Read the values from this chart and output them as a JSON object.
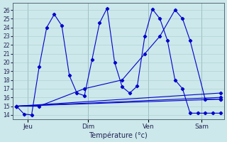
{
  "xlabel": "Température (°c)",
  "background_color": "#cce8ea",
  "grid_color": "#aacccc",
  "line_color": "#0000cc",
  "ylim": [
    13.5,
    26.8
  ],
  "yticks": [
    14,
    15,
    16,
    17,
    18,
    19,
    20,
    21,
    22,
    23,
    24,
    25,
    26
  ],
  "xtick_labels": [
    "Jeu",
    "Dim",
    "Ven",
    "Sam"
  ],
  "series": [
    {
      "x": [
        0,
        1,
        2,
        3,
        4,
        5,
        6,
        7,
        8,
        9,
        10,
        11,
        12,
        13,
        14,
        15,
        16,
        17,
        18,
        19,
        20,
        21,
        22,
        23,
        24,
        25,
        26,
        27
      ],
      "y": [
        15.0,
        14.1,
        14.0,
        19.5,
        24.0,
        25.5,
        24.2,
        18.5,
        16.5,
        16.2,
        20.3,
        24.5,
        26.2,
        20.0,
        17.2,
        16.5,
        17.3,
        23.0,
        26.1,
        25.0,
        22.5,
        18.0,
        17.0,
        14.2,
        14.2,
        14.2,
        14.2,
        14.2
      ]
    },
    {
      "x": [
        0,
        27
      ],
      "y": [
        15.0,
        15.8
      ]
    },
    {
      "x": [
        0,
        27
      ],
      "y": [
        15.0,
        16.5
      ]
    },
    {
      "x": [
        0,
        27
      ],
      "y": [
        15.0,
        16.0
      ]
    },
    {
      "x": [
        0,
        3,
        9,
        14,
        17,
        19,
        21,
        22,
        23,
        25,
        27
      ],
      "y": [
        15.0,
        15.0,
        17.0,
        18.0,
        21.0,
        23.0,
        26.0,
        25.0,
        22.5,
        15.8,
        15.8
      ]
    }
  ],
  "xlim": [
    -0.5,
    27.5
  ],
  "day_positions": [
    1.5,
    9.5,
    17.5,
    24.5
  ]
}
